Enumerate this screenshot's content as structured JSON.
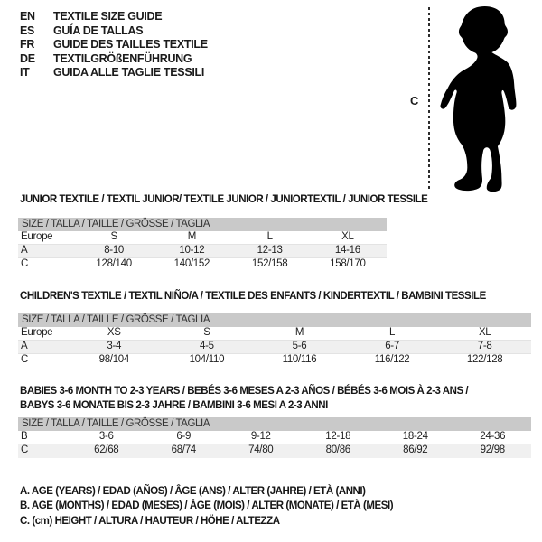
{
  "colors": {
    "table_header_bg": "#c9c9c9",
    "row_alt_bg": "#f0f0f0",
    "text": "#1b1b1b",
    "silhouette": "#000000"
  },
  "languages": [
    {
      "code": "EN",
      "label": "TEXTILE SIZE GUIDE"
    },
    {
      "code": "ES",
      "label": "GUÍA DE TALLAS"
    },
    {
      "code": "FR",
      "label": "GUIDE DES TAILLES TEXTILE"
    },
    {
      "code": "DE",
      "label": "TEXTILGRÖßENFÜHRUNG"
    },
    {
      "code": "IT",
      "label": "GUIDA ALLE TAGLIE TESSILI"
    }
  ],
  "figure": {
    "icon": "baby-silhouette-icon",
    "height_label": "C"
  },
  "sections": [
    {
      "title_lines": [
        "JUNIOR TEXTILE / TEXTIL JUNIOR/ TEXTILE JUNIOR / JUNIORTEXTIL / JUNIOR TESSILE"
      ],
      "size_header": "SIZE / TALLA / TAILLE / GRÖSSE / TAGLIA",
      "rows": [
        [
          "Europe",
          "S",
          "M",
          "L",
          "XL"
        ],
        [
          "A",
          "8-10",
          "10-12",
          "12-13",
          "14-16"
        ],
        [
          "C",
          "128/140",
          "140/152",
          "152/158",
          "158/170"
        ]
      ]
    },
    {
      "title_lines": [
        "CHILDREN'S TEXTILE / TEXTIL NIÑO/A / TEXTILE DES ENFANTS / KINDERTEXTIL / BAMBINI TESSILE"
      ],
      "size_header": "SIZE / TALLA / TAILLE / GRÖSSE / TAGLIA",
      "rows": [
        [
          "Europe",
          "XS",
          "S",
          "M",
          "L",
          "XL"
        ],
        [
          "A",
          "3-4",
          "4-5",
          "5-6",
          "6-7",
          "7-8"
        ],
        [
          "C",
          "98/104",
          "104/110",
          "110/116",
          "116/122",
          "122/128"
        ]
      ]
    },
    {
      "title_lines": [
        "BABIES 3-6 MONTH TO 2-3 YEARS / BEBÉS 3-6 MESES A 2-3 AÑOS / BÉBÉS 3-6 MOIS À 2-3 ANS /",
        "BABYS 3-6 MONATE BIS 2-3 JAHRE / BAMBINI 3-6 MESI A 2-3 ANNI"
      ],
      "size_header": "SIZE / TALLA / TAILLE / GRÖSSE / TAGLIA",
      "rows": [
        [
          "B",
          "3-6",
          "6-9",
          "9-12",
          "12-18",
          "18-24",
          "24-36"
        ],
        [
          "C",
          "62/68",
          "68/74",
          "74/80",
          "80/86",
          "86/92",
          "92/98"
        ]
      ]
    }
  ],
  "notes": [
    "A. AGE (YEARS) / EDAD (AÑOS) / ÂGE (ANS) / ALTER (JAHRE) / ETÀ (ANNI)",
    "B. AGE (MONTHS) / EDAD (MESES) / ÂGE (MOIS) / ALTER (MONATE) / ETÀ (MESI)",
    "C. (cm) HEIGHT / ALTURA / HAUTEUR / HÖHE / ALTEZZA"
  ]
}
